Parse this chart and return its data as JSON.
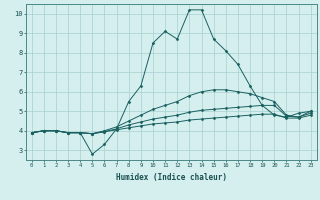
{
  "xlabel": "Humidex (Indice chaleur)",
  "ylabel": "",
  "bg_color": "#d5efef",
  "grid_color": "#a8cece",
  "line_color": "#1a6060",
  "xlim": [
    -0.5,
    23.5
  ],
  "ylim": [
    2.5,
    10.5
  ],
  "xticks": [
    0,
    1,
    2,
    3,
    4,
    5,
    6,
    7,
    8,
    9,
    10,
    11,
    12,
    13,
    14,
    15,
    16,
    17,
    18,
    19,
    20,
    21,
    22,
    23
  ],
  "yticks": [
    3,
    4,
    5,
    6,
    7,
    8,
    9,
    10
  ],
  "series": [
    {
      "x": [
        0,
        1,
        2,
        3,
        4,
        5,
        6,
        7,
        8,
        9,
        10,
        11,
        12,
        13,
        14,
        15,
        16,
        17,
        18,
        19,
        20,
        21,
        22,
        23
      ],
      "y": [
        3.9,
        4.0,
        4.0,
        3.9,
        3.9,
        2.8,
        3.3,
        4.1,
        5.5,
        6.3,
        8.5,
        9.1,
        8.7,
        10.2,
        10.2,
        8.7,
        8.1,
        7.4,
        6.3,
        5.3,
        4.8,
        4.7,
        4.9,
        5.0
      ]
    },
    {
      "x": [
        0,
        1,
        2,
        3,
        4,
        5,
        6,
        7,
        8,
        9,
        10,
        11,
        12,
        13,
        14,
        15,
        16,
        17,
        18,
        19,
        20,
        21,
        22,
        23
      ],
      "y": [
        3.9,
        4.0,
        4.0,
        3.9,
        3.9,
        3.85,
        4.0,
        4.2,
        4.5,
        4.8,
        5.1,
        5.3,
        5.5,
        5.8,
        6.0,
        6.1,
        6.1,
        6.0,
        5.9,
        5.7,
        5.5,
        4.8,
        4.7,
        5.0
      ]
    },
    {
      "x": [
        0,
        1,
        2,
        3,
        4,
        5,
        6,
        7,
        8,
        9,
        10,
        11,
        12,
        13,
        14,
        15,
        16,
        17,
        18,
        19,
        20,
        21,
        22,
        23
      ],
      "y": [
        3.9,
        4.0,
        4.0,
        3.9,
        3.9,
        3.85,
        3.95,
        4.1,
        4.3,
        4.45,
        4.6,
        4.7,
        4.8,
        4.95,
        5.05,
        5.1,
        5.15,
        5.2,
        5.25,
        5.3,
        5.3,
        4.75,
        4.7,
        4.9
      ]
    },
    {
      "x": [
        0,
        1,
        2,
        3,
        4,
        5,
        6,
        7,
        8,
        9,
        10,
        11,
        12,
        13,
        14,
        15,
        16,
        17,
        18,
        19,
        20,
        21,
        22,
        23
      ],
      "y": [
        3.9,
        4.0,
        4.0,
        3.9,
        3.9,
        3.85,
        3.95,
        4.05,
        4.15,
        4.25,
        4.35,
        4.4,
        4.45,
        4.55,
        4.6,
        4.65,
        4.7,
        4.75,
        4.8,
        4.85,
        4.85,
        4.65,
        4.65,
        4.8
      ]
    }
  ]
}
